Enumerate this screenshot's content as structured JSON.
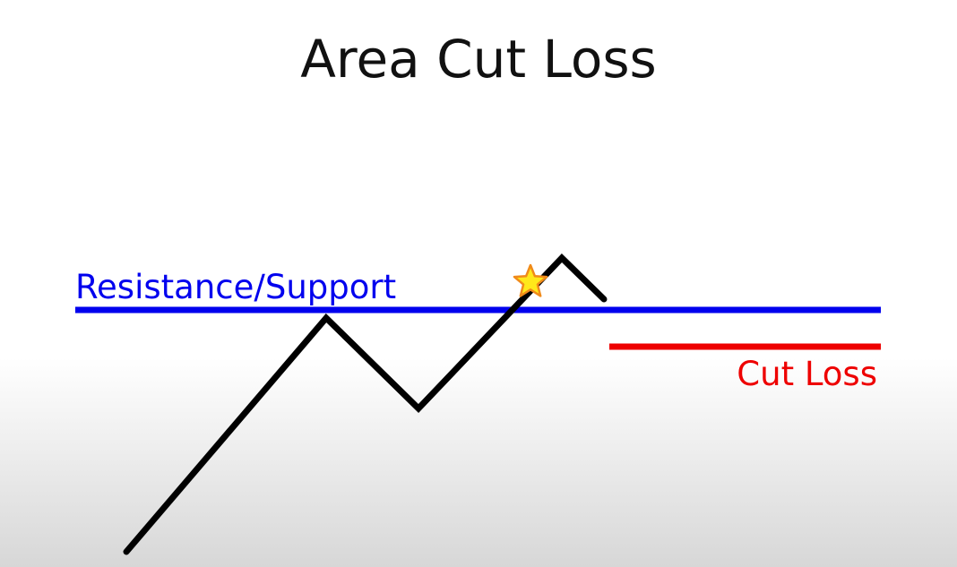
{
  "slide": {
    "title": "Area Cut Loss"
  },
  "labels": {
    "resistance_support": "Resistance/Support",
    "cut_loss": "Cut Loss"
  },
  "colors": {
    "resistance_support": "#0000ee",
    "cut_loss": "#ee0000",
    "price_path": "#000000",
    "star_fill": "#ffe81a",
    "star_stroke": "#f08a1a"
  },
  "icons": {
    "entry_marker": "star-icon"
  }
}
